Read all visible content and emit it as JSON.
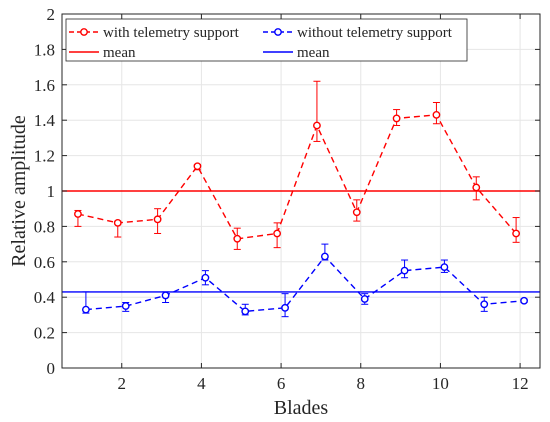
{
  "chart_data": {
    "type": "line",
    "xlabel": "Blades",
    "ylabel": "Relative amplitude",
    "xlim": [
      0.5,
      12.5
    ],
    "ylim": [
      0,
      2
    ],
    "xticks": [
      2,
      4,
      6,
      8,
      10,
      12
    ],
    "yticks": [
      0,
      0.2,
      0.4,
      0.6,
      0.8,
      1,
      1.2,
      1.4,
      1.6,
      1.8,
      2
    ],
    "grid": true,
    "legend_position": "top-left",
    "series": [
      {
        "name": "with telemetry support",
        "color": "#ff0000",
        "style": "dashed-circle-markers",
        "x": [
          0.9,
          1.9,
          2.9,
          3.9,
          4.9,
          5.9,
          6.9,
          7.9,
          8.9,
          9.9,
          10.9,
          11.9
        ],
        "y": [
          0.87,
          0.82,
          0.84,
          1.14,
          0.73,
          0.76,
          1.37,
          0.88,
          1.41,
          1.43,
          1.02,
          0.76
        ],
        "err_low": [
          0.07,
          0.08,
          0.08,
          0.02,
          0.06,
          0.08,
          0.09,
          0.05,
          0.04,
          0.05,
          0.07,
          0.05
        ],
        "err_high": [
          0.02,
          0.01,
          0.06,
          0.01,
          0.06,
          0.06,
          0.25,
          0.07,
          0.05,
          0.07,
          0.06,
          0.09
        ]
      },
      {
        "name": "without telemetry support",
        "color": "#0000ff",
        "style": "dashed-circle-markers",
        "x": [
          1.1,
          2.1,
          3.1,
          4.1,
          5.1,
          6.1,
          7.1,
          8.1,
          9.1,
          10.1,
          11.1,
          12.1
        ],
        "y": [
          0.33,
          0.35,
          0.41,
          0.51,
          0.32,
          0.34,
          0.63,
          0.39,
          0.55,
          0.57,
          0.36,
          0.38
        ],
        "err_low": [
          0.02,
          0.03,
          0.04,
          0.04,
          0.02,
          0.05,
          0.02,
          0.03,
          0.04,
          0.03,
          0.04,
          0.01
        ],
        "err_high": [
          0.1,
          0.02,
          0.02,
          0.04,
          0.04,
          0.08,
          0.07,
          0.03,
          0.06,
          0.04,
          0.04,
          0.01
        ]
      }
    ],
    "reference_lines": [
      {
        "name": "mean",
        "color": "#ff0000",
        "y": 1.0
      },
      {
        "name": "mean",
        "color": "#0000ff",
        "y": 0.43
      }
    ]
  }
}
